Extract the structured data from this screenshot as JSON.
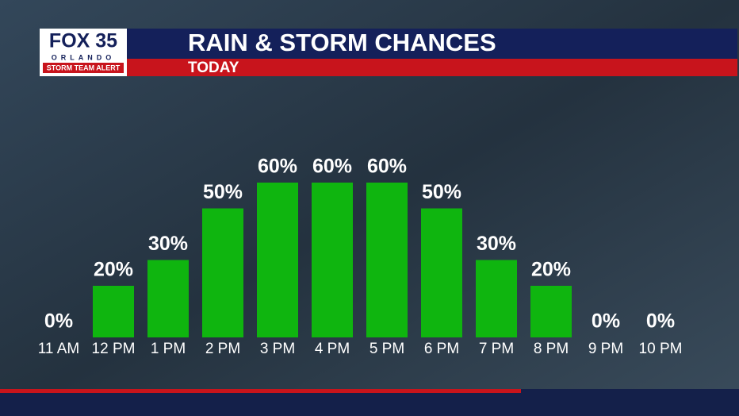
{
  "brand": {
    "name": "FOX 35",
    "city": "ORLANDO",
    "tag": "STORM TEAM ALERT"
  },
  "chart_data": {
    "type": "bar",
    "title": "RAIN & STORM CHANCES",
    "subtitle": "TODAY",
    "categories": [
      "11 AM",
      "12 PM",
      "1 PM",
      "2 PM",
      "3 PM",
      "4 PM",
      "5 PM",
      "6 PM",
      "7 PM",
      "8 PM",
      "9 PM",
      "10 PM"
    ],
    "values": [
      0,
      20,
      30,
      50,
      60,
      60,
      60,
      50,
      30,
      20,
      0,
      0
    ],
    "value_labels": [
      "0%",
      "20%",
      "30%",
      "50%",
      "60%",
      "60%",
      "60%",
      "50%",
      "30%",
      "20%",
      "0%",
      "0%"
    ],
    "color": "#0fb50f"
  }
}
